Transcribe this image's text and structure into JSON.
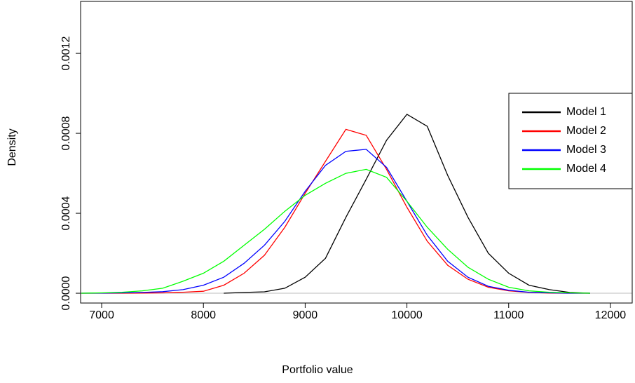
{
  "chart_data": {
    "type": "line",
    "x_label": "Portfolio value",
    "y_label": "Density",
    "x": [
      6800,
      7000,
      7200,
      7400,
      7600,
      7800,
      8000,
      8200,
      8400,
      8600,
      8800,
      9000,
      9200,
      9400,
      9600,
      9800,
      10000,
      10200,
      10400,
      10600,
      10800,
      11000,
      11200,
      11400,
      11600,
      11800
    ],
    "series": [
      {
        "name": "Model 1",
        "color": "#000000",
        "values": [
          null,
          null,
          null,
          null,
          null,
          null,
          null,
          0,
          4e-06,
          7e-06,
          2.5e-05,
          8e-05,
          0.000175,
          0.00038,
          0.00057,
          0.000765,
          0.000895,
          0.000835,
          0.00059,
          0.00038,
          0.0002,
          0.0001,
          4e-05,
          1.8e-05,
          4e-06,
          0
        ]
      },
      {
        "name": "Model 2",
        "color": "#ff0000",
        "values": [
          0,
          0,
          0,
          1e-06,
          2e-06,
          5e-06,
          1e-05,
          4e-05,
          0.0001,
          0.00019,
          0.00033,
          0.0005,
          0.00066,
          0.00082,
          0.00079,
          0.00062,
          0.00043,
          0.00026,
          0.00014,
          7e-05,
          3e-05,
          1.2e-05,
          4e-06,
          1e-06,
          0,
          0
        ]
      },
      {
        "name": "Model 3",
        "color": "#0000ff",
        "values": [
          0,
          1e-06,
          2e-06,
          4e-06,
          8e-06,
          1.8e-05,
          4e-05,
          8e-05,
          0.00015,
          0.00024,
          0.00036,
          0.00051,
          0.00064,
          0.00071,
          0.00072,
          0.00063,
          0.00046,
          0.00029,
          0.00016,
          8e-05,
          3.5e-05,
          1.5e-05,
          5e-06,
          2e-06,
          0,
          0
        ]
      },
      {
        "name": "Model 4",
        "color": "#00ff00",
        "values": [
          0,
          2e-06,
          5e-06,
          1.2e-05,
          2.5e-05,
          6e-05,
          0.0001,
          0.00016,
          0.00024,
          0.00032,
          0.00041,
          0.00049,
          0.00055,
          0.0006,
          0.00062,
          0.00058,
          0.00046,
          0.00033,
          0.00022,
          0.00013,
          7e-05,
          3e-05,
          1.2e-05,
          5e-06,
          2e-06,
          0
        ]
      }
    ],
    "xlim": [
      6793,
      12214
    ],
    "xticks": [
      7000,
      8000,
      9000,
      10000,
      11000,
      12000
    ],
    "ylim": [
      -4.9e-05,
      0.00146
    ],
    "yticks": [
      {
        "value": 0,
        "label": "0.0000"
      },
      {
        "value": 0.0004,
        "label": "0.0004"
      },
      {
        "value": 0.0008,
        "label": "0.0008"
      },
      {
        "value": 0.0012,
        "label": "0.0012"
      }
    ],
    "legend_position": "right",
    "grid": false
  }
}
